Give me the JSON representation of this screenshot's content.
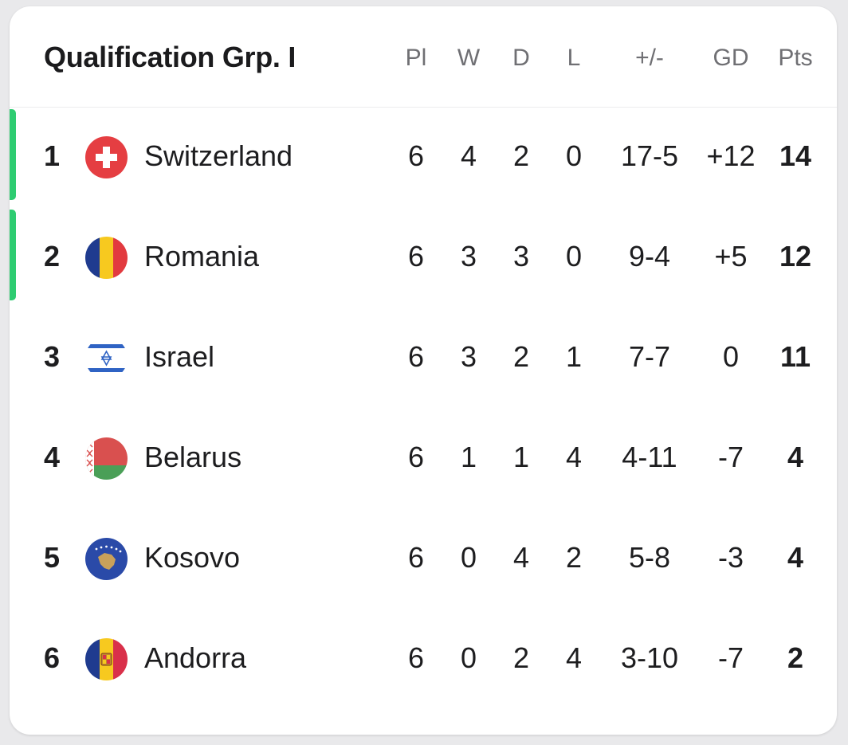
{
  "table": {
    "title": "Qualification Grp. I",
    "columns": {
      "pl": "Pl",
      "w": "W",
      "d": "D",
      "l": "L",
      "goals": "+/-",
      "gd": "GD",
      "pts": "Pts"
    },
    "qualify_color": "#2ecc71",
    "rows": [
      {
        "pos": "1",
        "team": "Switzerland",
        "flag": "switzerland-flag-icon",
        "pl": "6",
        "w": "4",
        "d": "2",
        "l": "0",
        "goals": "17-5",
        "gd": "+12",
        "pts": "14",
        "qualified": true
      },
      {
        "pos": "2",
        "team": "Romania",
        "flag": "romania-flag-icon",
        "pl": "6",
        "w": "3",
        "d": "3",
        "l": "0",
        "goals": "9-4",
        "gd": "+5",
        "pts": "12",
        "qualified": true
      },
      {
        "pos": "3",
        "team": "Israel",
        "flag": "israel-flag-icon",
        "pl": "6",
        "w": "3",
        "d": "2",
        "l": "1",
        "goals": "7-7",
        "gd": "0",
        "pts": "11",
        "qualified": false
      },
      {
        "pos": "4",
        "team": "Belarus",
        "flag": "belarus-flag-icon",
        "pl": "6",
        "w": "1",
        "d": "1",
        "l": "4",
        "goals": "4-11",
        "gd": "-7",
        "pts": "4",
        "qualified": false
      },
      {
        "pos": "5",
        "team": "Kosovo",
        "flag": "kosovo-flag-icon",
        "pl": "6",
        "w": "0",
        "d": "4",
        "l": "2",
        "goals": "5-8",
        "gd": "-3",
        "pts": "4",
        "qualified": false
      },
      {
        "pos": "6",
        "team": "Andorra",
        "flag": "andorra-flag-icon",
        "pl": "6",
        "w": "0",
        "d": "2",
        "l": "4",
        "goals": "3-10",
        "gd": "-7",
        "pts": "2",
        "qualified": false
      }
    ]
  }
}
